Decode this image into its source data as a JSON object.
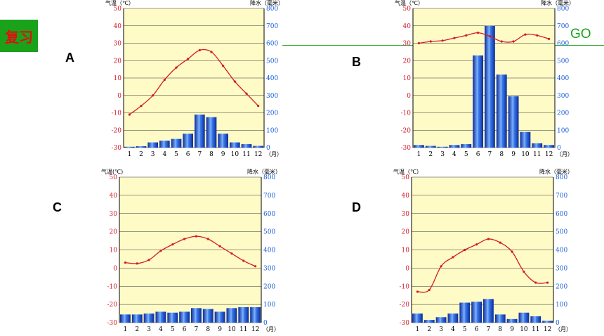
{
  "slide": {
    "review_label": "复习",
    "go_label": "GO",
    "letters": [
      "A",
      "B",
      "C",
      "D"
    ]
  },
  "colors": {
    "temperature": "#d41a2a",
    "precipitation": "#1a5ed6",
    "plot_background": "#fffbc6",
    "button_bg": "#1aa31a"
  },
  "chart_data": [
    {
      "type": "bar",
      "letter": "A",
      "title": "",
      "xlabel": "（月）",
      "ylabel": "气温（℃）",
      "y2label": "降水（毫米）",
      "categories": [
        "1",
        "2",
        "3",
        "4",
        "5",
        "6",
        "7",
        "8",
        "9",
        "10",
        "11",
        "12"
      ],
      "ylim": [
        -30,
        50
      ],
      "y2lim": [
        0,
        800
      ],
      "yticks": [
        "50",
        "40",
        "30",
        "20",
        "10",
        "0",
        "-10",
        "-20",
        "-30"
      ],
      "y2ticks": [
        "800",
        "700",
        "600",
        "500",
        "400",
        "300",
        "200",
        "100",
        "0"
      ],
      "series": [
        {
          "kind": "line",
          "axis": "temperature",
          "values": [
            -11,
            -6,
            0,
            9,
            16,
            21,
            26,
            25,
            17,
            8,
            1,
            -6
          ]
        },
        {
          "kind": "bar",
          "axis": "precipitation",
          "values": [
            5,
            8,
            30,
            40,
            50,
            80,
            190,
            175,
            80,
            30,
            20,
            10
          ]
        }
      ]
    },
    {
      "type": "bar",
      "letter": "B",
      "title": "",
      "xlabel": "（月）",
      "ylabel": "气温（℃）",
      "y2label": "降水（毫米）",
      "categories": [
        "1",
        "2",
        "3",
        "4",
        "5",
        "6",
        "7",
        "8",
        "9",
        "10",
        "11",
        "12"
      ],
      "ylim": [
        -30,
        50
      ],
      "y2lim": [
        0,
        800
      ],
      "yticks": [
        "50",
        "40",
        "30",
        "20",
        "10",
        "0",
        "-10",
        "-20",
        "-30"
      ],
      "y2ticks": [
        "800",
        "700",
        "600",
        "500",
        "400",
        "300",
        "200",
        "100",
        "0"
      ],
      "series": [
        {
          "kind": "line",
          "axis": "temperature",
          "values": [
            30,
            31,
            31.5,
            33,
            34.5,
            36,
            34,
            31,
            31,
            35,
            34.5,
            32.5
          ]
        },
        {
          "kind": "bar",
          "axis": "precipitation",
          "values": [
            15,
            10,
            5,
            15,
            20,
            530,
            700,
            420,
            295,
            90,
            25,
            15
          ]
        }
      ]
    },
    {
      "type": "bar",
      "letter": "C",
      "title": "",
      "xlabel": "（月）",
      "ylabel": "气温(℃)",
      "y2label": "降水（毫米）",
      "categories": [
        "1",
        "2",
        "3",
        "4",
        "5",
        "6",
        "7",
        "8",
        "9",
        "10",
        "11",
        "12"
      ],
      "ylim": [
        -30,
        50
      ],
      "y2lim": [
        0,
        800
      ],
      "yticks": [
        "50",
        "40",
        "30",
        "20",
        "10",
        "0",
        "-10",
        "-20",
        "-30"
      ],
      "y2ticks": [
        "800",
        "700",
        "600",
        "500",
        "400",
        "300",
        "200",
        "100",
        "0"
      ],
      "series": [
        {
          "kind": "line",
          "axis": "temperature",
          "values": [
            3,
            2.5,
            4.5,
            9.5,
            13,
            16,
            17.5,
            16,
            12,
            8,
            4,
            1
          ]
        },
        {
          "kind": "bar",
          "axis": "precipitation",
          "values": [
            45,
            45,
            50,
            60,
            55,
            60,
            80,
            75,
            60,
            80,
            85,
            85
          ]
        }
      ]
    },
    {
      "type": "bar",
      "letter": "D",
      "title": "",
      "xlabel": "（月）",
      "ylabel": "气温（℃）",
      "y2label": "降水（毫米）",
      "categories": [
        "1",
        "2",
        "3",
        "4",
        "5",
        "6",
        "7",
        "8",
        "9",
        "10",
        "11",
        "12"
      ],
      "ylim": [
        -30,
        50
      ],
      "y2lim": [
        0,
        800
      ],
      "yticks": [
        "50",
        "40",
        "30",
        "20",
        "10",
        "0",
        "-10",
        "-20",
        "-30"
      ],
      "y2ticks": [
        "800",
        "700",
        "600",
        "500",
        "400",
        "300",
        "200",
        "100",
        "0"
      ],
      "series": [
        {
          "kind": "line",
          "axis": "temperature",
          "values": [
            -13,
            -12,
            1,
            6,
            10,
            13,
            16,
            14,
            9,
            -2,
            -8,
            -8
          ]
        },
        {
          "kind": "bar",
          "axis": "precipitation",
          "values": [
            50,
            15,
            30,
            50,
            110,
            115,
            130,
            45,
            20,
            55,
            35,
            10
          ]
        }
      ]
    }
  ]
}
